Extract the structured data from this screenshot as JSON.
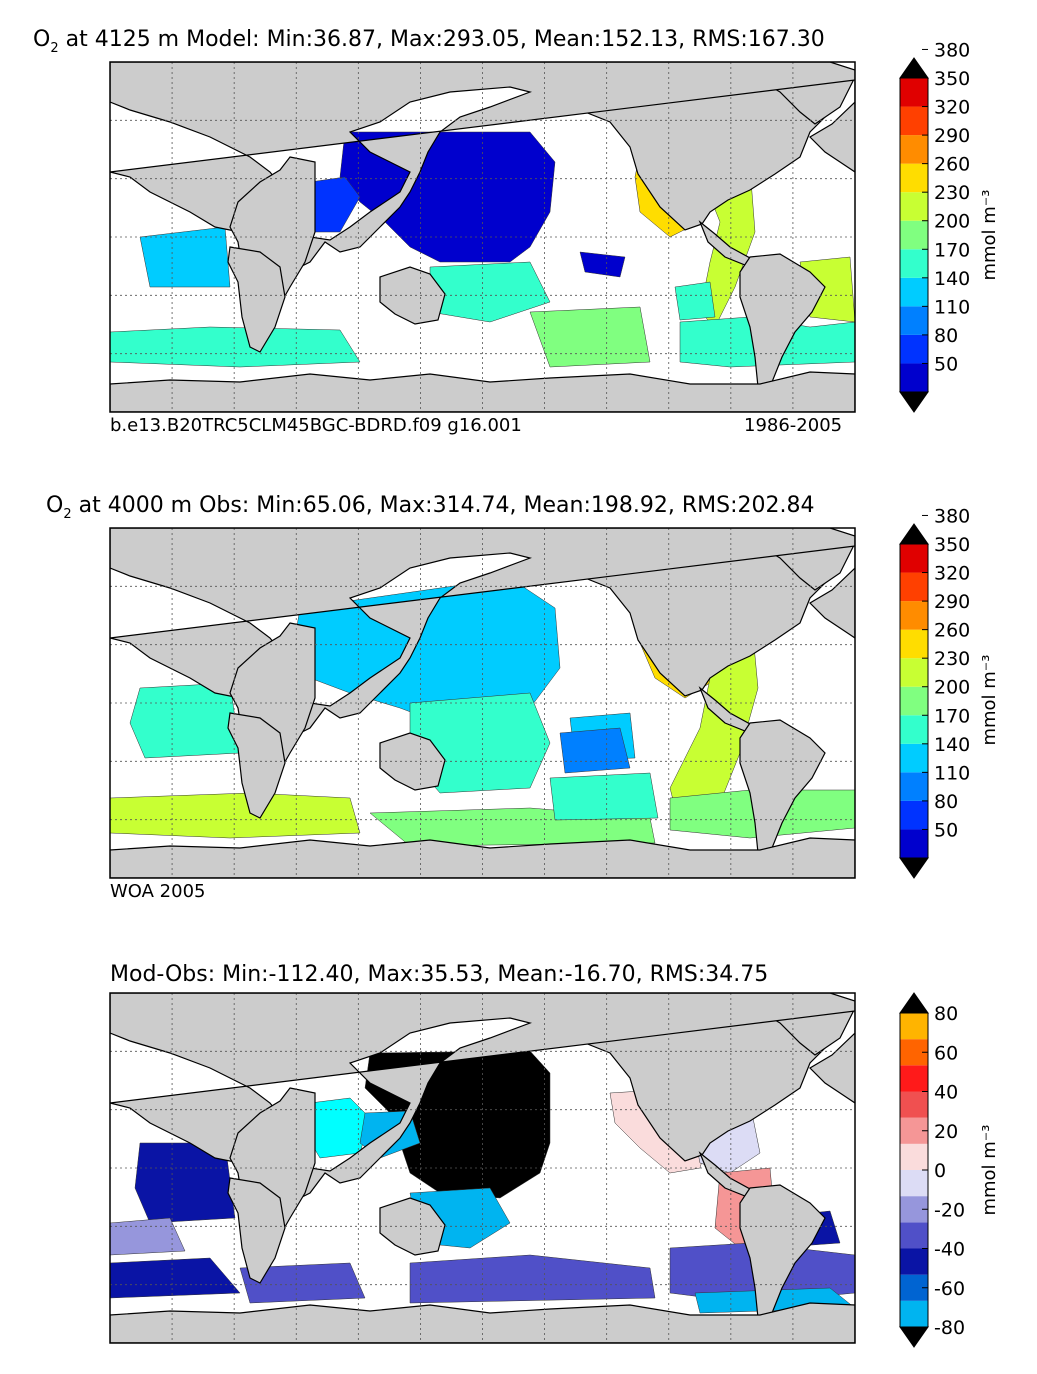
{
  "panels": [
    {
      "title_o": "O",
      "title_sub": "2",
      "title_rest": " at 4125 m Model: Min:36.87, Max:293.05, Mean:152.13, RMS:167.30",
      "footer_left": "b.e13.B20TRC5CLM45BGC-BDRD.f09 g16.001",
      "footer_right": "1986-2005"
    },
    {
      "title_o": "O",
      "title_sub": "2",
      "title_rest": " at 4000 m Obs: Min:65.06, Max:314.74, Mean:198.92, RMS:202.84",
      "footer_left": "WOA 2005",
      "footer_right": ""
    },
    {
      "title_o": "",
      "title_sub": "",
      "title_rest": "Mod-Obs: Min:-112.40, Max:35.53, Mean:-16.70, RMS:34.75",
      "footer_left": "",
      "footer_right": ""
    }
  ],
  "chart_data": [
    {
      "type": "heatmap",
      "title": "O2 at 4125 m Model: Min:36.87, Max:293.05, Mean:152.13, RMS:167.30",
      "variable": "O2",
      "depth_m": 4125,
      "source": "Model",
      "stats": {
        "min": 36.87,
        "max": 293.05,
        "mean": 152.13,
        "rms": 167.3
      },
      "colorbar": {
        "ticks": [
          50,
          80,
          110,
          140,
          170,
          200,
          230,
          260,
          290,
          320,
          350,
          380
        ],
        "unit": "mmol m^-3",
        "extend": "both",
        "colors": [
          "#000080",
          "#0000cd",
          "#0033ff",
          "#0080ff",
          "#00ccff",
          "#33ffcc",
          "#80ff80",
          "#c8ff33",
          "#ffdd00",
          "#ff8c00",
          "#ff4000",
          "#e00000",
          "#800000"
        ]
      }
    },
    {
      "type": "heatmap",
      "title": "O2 at 4000 m Obs: Min:65.06, Max:314.74, Mean:198.92, RMS:202.84",
      "variable": "O2",
      "depth_m": 4000,
      "source": "Obs",
      "stats": {
        "min": 65.06,
        "max": 314.74,
        "mean": 198.92,
        "rms": 202.84
      },
      "colorbar": {
        "ticks": [
          50,
          80,
          110,
          140,
          170,
          200,
          230,
          260,
          290,
          320,
          350,
          380
        ],
        "unit": "mmol m^-3",
        "extend": "both",
        "colors": [
          "#000080",
          "#0000cd",
          "#0033ff",
          "#0080ff",
          "#00ccff",
          "#33ffcc",
          "#80ff80",
          "#c8ff33",
          "#ffdd00",
          "#ff8c00",
          "#ff4000",
          "#e00000",
          "#800000"
        ]
      }
    },
    {
      "type": "heatmap",
      "title": "Mod-Obs: Min:-112.40, Max:35.53, Mean:-16.70, RMS:34.75",
      "variable": "O2 difference",
      "source": "Mod-Obs",
      "stats": {
        "min": -112.4,
        "max": 35.53,
        "mean": -16.7,
        "rms": 34.75
      },
      "colorbar": {
        "ticks": [
          -80,
          -60,
          -40,
          -20,
          0,
          20,
          40,
          60,
          80
        ],
        "unit": "mmol m^-3",
        "extend": "both",
        "colors": [
          "#00ffff",
          "#00b4f0",
          "#0064d2",
          "#0a14a5",
          "#5050c8",
          "#9696dc",
          "#dcdcf5",
          "#fadcdc",
          "#f59696",
          "#f05050",
          "#ff1a1a",
          "#ff6400",
          "#ffb400",
          "#ffff33"
        ]
      }
    }
  ],
  "colors": {
    "land": "#cccccc",
    "ocean_blank": "#ffffff",
    "grid": "#555555"
  }
}
